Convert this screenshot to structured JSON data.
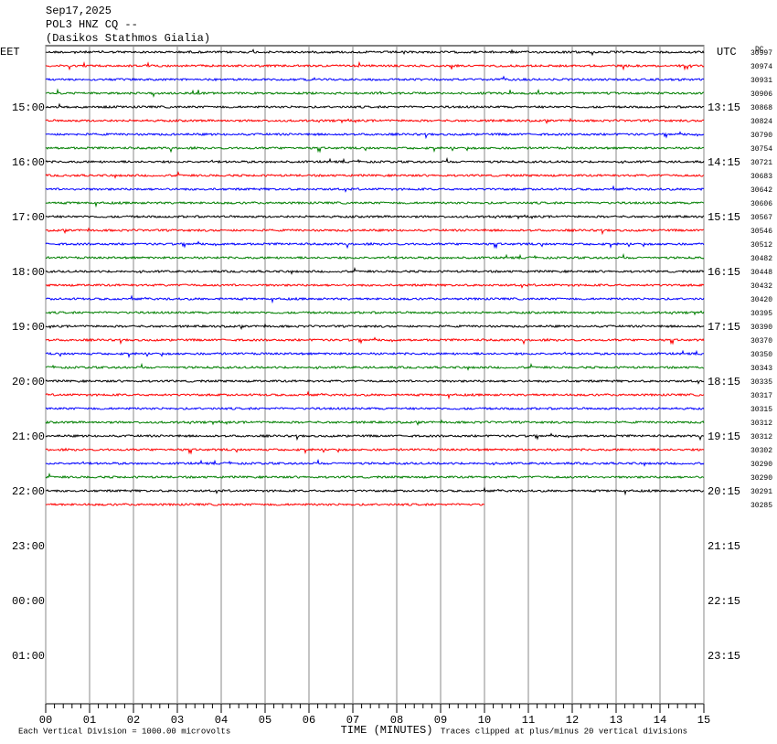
{
  "chart_data": {
    "type": "helicorder",
    "title_lines": [
      "Sep17,2025",
      "POL3 HNZ CQ --",
      "(Dasikos Stathmos Gialia)"
    ],
    "left_axis_title": "EET",
    "right_axis_title": "UTC",
    "corner_label": "DC",
    "left_labels": [
      "15:00",
      "16:00",
      "17:00",
      "18:00",
      "19:00",
      "20:00",
      "21:00",
      "22:00",
      "23:00",
      "00:00",
      "01:00"
    ],
    "right_labels": [
      "13:15",
      "14:15",
      "15:15",
      "16:15",
      "17:15",
      "18:15",
      "19:15",
      "20:15",
      "21:15",
      "22:15",
      "23:15"
    ],
    "x_label": "TIME (MINUTES)",
    "xlim": [
      0,
      15
    ],
    "xticks": [
      {
        "value": 0,
        "label": "00"
      },
      {
        "value": 1,
        "label": "01"
      },
      {
        "value": 2,
        "label": "02"
      },
      {
        "value": 3,
        "label": "03"
      },
      {
        "value": 4,
        "label": "04"
      },
      {
        "value": 5,
        "label": "05"
      },
      {
        "value": 6,
        "label": "06"
      },
      {
        "value": 7,
        "label": "07"
      },
      {
        "value": 8,
        "label": "08"
      },
      {
        "value": 9,
        "label": "09"
      },
      {
        "value": 10,
        "label": "10"
      },
      {
        "value": 11,
        "label": "11"
      },
      {
        "value": 12,
        "label": "12"
      },
      {
        "value": 13,
        "label": "13"
      },
      {
        "value": 14,
        "label": "14"
      },
      15
    ],
    "footer_left": "Each Vertical Division = 1000.00 microvolts",
    "footer_right": "Traces clipped at plus/minus 20 vertical divisions",
    "colors": [
      "#000000",
      "#ff0000",
      "#0000ff",
      "#007f00"
    ],
    "traces": [
      {
        "label": "30997",
        "end": 15
      },
      {
        "label": "30974",
        "end": 15
      },
      {
        "label": "30931",
        "end": 15
      },
      {
        "label": "30906",
        "end": 15
      },
      {
        "label": "30868",
        "end": 15
      },
      {
        "label": "30824",
        "end": 15
      },
      {
        "label": "30790",
        "end": 15
      },
      {
        "label": "30754",
        "end": 15
      },
      {
        "label": "30721",
        "end": 15
      },
      {
        "label": "30683",
        "end": 15
      },
      {
        "label": "30642",
        "end": 15
      },
      {
        "label": "30606",
        "end": 15
      },
      {
        "label": "30567",
        "end": 15
      },
      {
        "label": "30546",
        "end": 15
      },
      {
        "label": "30512",
        "end": 15
      },
      {
        "label": "30482",
        "end": 15
      },
      {
        "label": "30448",
        "end": 15
      },
      {
        "label": "30432",
        "end": 15
      },
      {
        "label": "30420",
        "end": 15
      },
      {
        "label": "30395",
        "end": 15
      },
      {
        "label": "30390",
        "end": 15
      },
      {
        "label": "30370",
        "end": 15
      },
      {
        "label": "30350",
        "end": 15
      },
      {
        "label": "30343",
        "end": 15
      },
      {
        "label": "30335",
        "end": 15
      },
      {
        "label": "30317",
        "end": 15
      },
      {
        "label": "30315",
        "end": 15
      },
      {
        "label": "30312",
        "end": 15
      },
      {
        "label": "30312",
        "end": 15
      },
      {
        "label": "30302",
        "end": 15
      },
      {
        "label": "30290",
        "end": 15
      },
      {
        "label": "30290",
        "end": 15
      },
      {
        "label": "30291",
        "end": 15
      },
      {
        "label": "30285",
        "end": 10
      }
    ]
  }
}
